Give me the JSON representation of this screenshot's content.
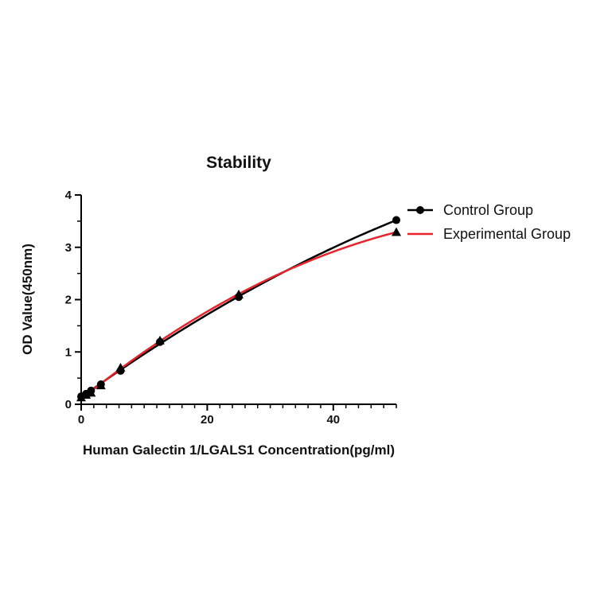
{
  "chart_data": {
    "type": "scatter",
    "title": "Stability",
    "xlabel": "Human Galectin 1/LGALS1 Concentration(pg/ml)",
    "ylabel": "OD Value(450nm)",
    "xlim": [
      0,
      50
    ],
    "ylim": [
      0,
      4
    ],
    "xticks": [
      0,
      20,
      40
    ],
    "yticks": [
      0,
      1,
      2,
      3,
      4
    ],
    "legend_position": "right",
    "series": [
      {
        "name": "Control Group",
        "marker": "circle",
        "color": "#000000",
        "x": [
          0,
          0.78,
          1.56,
          3.13,
          6.25,
          12.5,
          25,
          50
        ],
        "y": [
          0.15,
          0.2,
          0.26,
          0.38,
          0.64,
          1.19,
          2.05,
          3.52
        ]
      },
      {
        "name": "Experimental Group",
        "marker": "triangle",
        "color": "#e8232a",
        "x": [
          0,
          0.78,
          1.56,
          3.13,
          6.25,
          12.5,
          25,
          50
        ],
        "y": [
          0.13,
          0.18,
          0.22,
          0.36,
          0.7,
          1.22,
          2.1,
          3.29
        ]
      }
    ]
  }
}
